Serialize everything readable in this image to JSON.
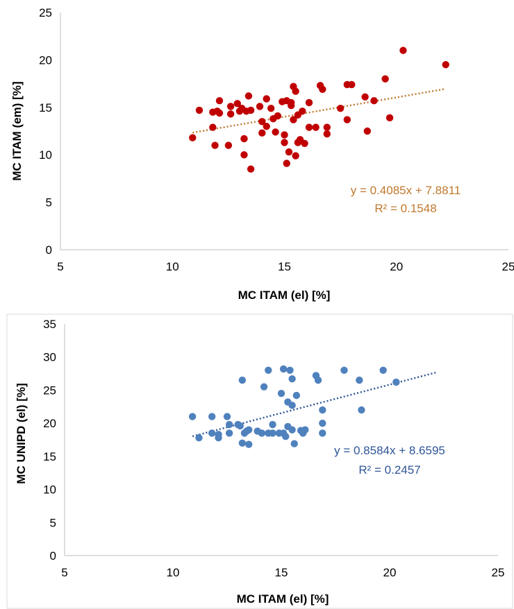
{
  "chart_data": [
    {
      "type": "scatter",
      "xlabel": "MC  ITAM  (el) [%]",
      "ylabel": "MC ITAM (em) [%]",
      "xlim": [
        5,
        25
      ],
      "ylim": [
        0,
        25
      ],
      "xticks": [
        "5",
        "10",
        "15",
        "20",
        "25"
      ],
      "yticks": [
        "0",
        "5",
        "10",
        "15",
        "20",
        "25"
      ],
      "grid": false,
      "marker_color": "#c00000",
      "trend_color": "#c0782c",
      "trendline": {
        "slope": 0.4085,
        "intercept": 7.8811,
        "x_range": [
          10.9,
          22.2
        ]
      },
      "equation": "y = 0.4085x + 7.8811",
      "r2": "R² = 0.1548",
      "series": [
        {
          "x": [
            10.9,
            11.2,
            11.8,
            11.8,
            11.9,
            12.0,
            12.1,
            12.1,
            12.5,
            12.6,
            12.6,
            12.9,
            13.0,
            13.1,
            13.2,
            13.2,
            13.3,
            13.4,
            13.5,
            13.5,
            13.9,
            14.0,
            14.0,
            14.2,
            14.2,
            14.4,
            14.5,
            14.6,
            14.7,
            14.9,
            15.0,
            15.0,
            15.1,
            15.1,
            15.2,
            15.3,
            15.3,
            15.4,
            15.4,
            15.5,
            15.5,
            15.6,
            15.6,
            15.7,
            15.8,
            15.9,
            16.1,
            16.1,
            16.4,
            16.6,
            16.7,
            16.9,
            16.9,
            17.5,
            17.8,
            17.8,
            18.0,
            18.6,
            18.7,
            19.0,
            19.5,
            19.7,
            20.3,
            22.2
          ],
          "y": [
            11.8,
            14.7,
            12.9,
            14.5,
            11.0,
            14.6,
            14.4,
            15.7,
            11.0,
            14.3,
            15.1,
            15.4,
            14.6,
            14.9,
            11.7,
            10.0,
            14.6,
            16.2,
            8.5,
            14.7,
            15.1,
            13.5,
            12.3,
            15.9,
            13.0,
            14.9,
            13.8,
            12.4,
            14.1,
            15.6,
            12.1,
            11.3,
            9.1,
            15.7,
            10.3,
            15.2,
            15.5,
            17.2,
            13.7,
            16.7,
            9.9,
            14.2,
            11.3,
            11.6,
            14.6,
            11.2,
            15.5,
            12.9,
            12.9,
            17.3,
            16.9,
            12.2,
            12.9,
            14.9,
            13.7,
            17.4,
            17.4,
            16.1,
            12.5,
            15.7,
            18.0,
            13.9,
            21.0,
            19.5
          ]
        }
      ]
    },
    {
      "type": "scatter",
      "xlabel": "MC  ITAM  (el) [%]",
      "ylabel": "MC UNIPD (el) [%]",
      "xlim": [
        5,
        25
      ],
      "ylim": [
        0,
        35
      ],
      "xticks": [
        "5",
        "10",
        "15",
        "20",
        "25"
      ],
      "yticks": [
        "0",
        "5",
        "10",
        "15",
        "20",
        "25",
        "30",
        "35"
      ],
      "grid": false,
      "marker_color": "#4f81bd",
      "trend_color": "#2e5597",
      "trendline": {
        "slope": 0.8584,
        "intercept": 8.6595,
        "x_range": [
          10.9,
          22.2
        ]
      },
      "equation": "y = 0.8584x + 8.6595",
      "r2": "R² = 0.2457",
      "series": [
        {
          "x": [
            10.9,
            11.2,
            11.8,
            11.8,
            12.1,
            12.1,
            12.5,
            12.6,
            12.6,
            13.0,
            13.1,
            13.2,
            13.2,
            13.3,
            13.4,
            13.5,
            13.5,
            13.9,
            14.1,
            14.2,
            14.4,
            14.4,
            14.6,
            14.6,
            14.9,
            15.0,
            15.1,
            15.1,
            15.2,
            15.3,
            15.3,
            15.4,
            15.5,
            15.5,
            15.5,
            15.6,
            15.7,
            15.9,
            16.0,
            16.1,
            16.6,
            16.7,
            16.9,
            16.9,
            16.9,
            17.9,
            18.6,
            18.7,
            19.7,
            20.3
          ],
          "y": [
            21.0,
            17.8,
            21.0,
            18.5,
            18.3,
            17.8,
            21.0,
            19.8,
            18.5,
            19.8,
            19.6,
            26.5,
            17.0,
            18.5,
            18.8,
            16.8,
            19.0,
            18.8,
            18.5,
            25.5,
            18.5,
            28.0,
            19.8,
            18.5,
            18.5,
            24.5,
            28.2,
            18.5,
            18.0,
            19.5,
            23.2,
            28.0,
            26.7,
            22.7,
            19.0,
            16.9,
            24.2,
            18.9,
            18.5,
            19.0,
            27.2,
            26.5,
            22.0,
            20.0,
            18.5,
            28.0,
            26.5,
            22.0,
            28.0,
            26.2
          ]
        }
      ]
    }
  ]
}
